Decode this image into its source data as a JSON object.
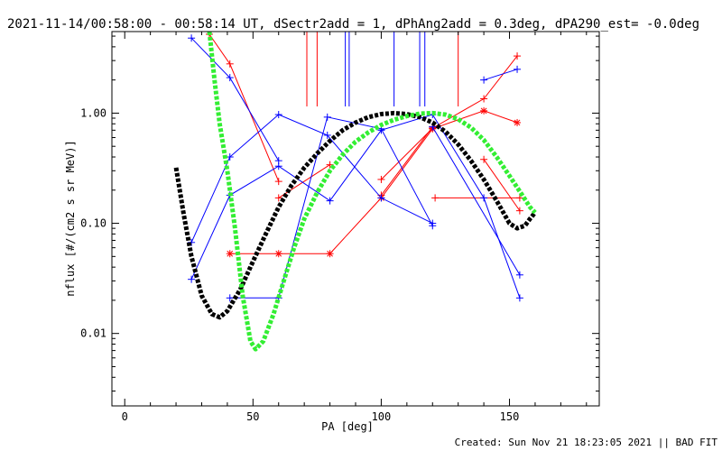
{
  "chart_data": {
    "type": "scatter",
    "title": "2021-11-14/00:58:00 - 00:58:14 UT, dSectr2add = 1, dPhAng2add = 0.3deg, dPA290_est= -0.0deg",
    "xlabel": "PA [deg]",
    "ylabel": "nflux [#/(cm2 s sr MeV)]",
    "xlim": [
      -5,
      185
    ],
    "ylim": [
      0.0022,
      5.5
    ],
    "yscale": "log",
    "xticks": [
      0,
      50,
      100,
      150
    ],
    "xtick_labels": [
      "0",
      "50",
      "100",
      "150"
    ],
    "yticks": [
      0.01,
      0.1,
      1.0
    ],
    "ytick_labels": [
      "0.01",
      "0.10",
      "1.00"
    ],
    "vertical_markers": {
      "red": [
        71,
        75,
        130
      ],
      "blue": [
        86,
        87.5,
        105,
        115,
        117
      ]
    },
    "series": [
      {
        "marker": "plus",
        "color": "#ff0000",
        "segments": [
          [
            [
              33,
              5.2
            ],
            [
              41,
              2.8
            ],
            [
              60,
              0.24
            ]
          ],
          [
            [
              60,
              0.17
            ],
            [
              80,
              0.34
            ]
          ],
          [
            [
              100,
              0.25
            ],
            [
              120,
              0.73
            ],
            [
              140,
              1.35
            ],
            [
              153,
              3.3
            ]
          ],
          [
            [
              121,
              0.17
            ],
            [
              154,
              0.17
            ]
          ],
          [
            [
              154,
              0.13
            ],
            [
              140,
              0.38
            ]
          ],
          [
            [
              100,
              0.18
            ],
            [
              120,
              0.75
            ]
          ]
        ]
      },
      {
        "marker": "star",
        "color": "#ff0000",
        "segments": [
          [
            [
              41,
              0.053
            ],
            [
              60,
              0.053
            ],
            [
              80,
              0.053
            ],
            [
              100,
              0.17
            ],
            [
              120,
              0.72
            ],
            [
              140,
              1.05
            ],
            [
              153,
              0.82
            ]
          ]
        ]
      },
      {
        "marker": "plus",
        "color": "#0000ff",
        "segments": [
          [
            [
              26,
              4.8
            ],
            [
              41,
              2.1
            ],
            [
              60,
              0.37
            ]
          ],
          [
            [
              26,
              0.067
            ],
            [
              41,
              0.4
            ],
            [
              60,
              0.97
            ],
            [
              79,
              0.63
            ],
            [
              100,
              0.17
            ],
            [
              120,
              0.1
            ]
          ],
          [
            [
              26,
              0.031
            ],
            [
              41,
              0.18
            ],
            [
              60,
              0.33
            ],
            [
              80,
              0.16
            ],
            [
              100,
              0.7
            ],
            [
              120,
              0.97
            ],
            [
              140,
              0.17
            ],
            [
              154,
              0.021
            ]
          ],
          [
            [
              41,
              0.021
            ],
            [
              60,
              0.021
            ],
            [
              79,
              0.92
            ],
            [
              100,
              0.72
            ],
            [
              120,
              0.095
            ]
          ],
          [
            [
              140,
              2.0
            ],
            [
              153,
              2.5
            ]
          ],
          [
            [
              120,
              0.75
            ],
            [
              154,
              0.034
            ]
          ]
        ]
      }
    ],
    "fits": [
      {
        "color": "#000000",
        "points": [
          [
            20,
            0.32
          ],
          [
            23,
            0.12
          ],
          [
            26,
            0.05
          ],
          [
            30,
            0.022
          ],
          [
            34,
            0.015
          ],
          [
            37,
            0.014
          ],
          [
            40,
            0.016
          ],
          [
            45,
            0.025
          ],
          [
            50,
            0.045
          ],
          [
            55,
            0.08
          ],
          [
            60,
            0.14
          ],
          [
            65,
            0.22
          ],
          [
            70,
            0.32
          ],
          [
            75,
            0.43
          ],
          [
            80,
            0.56
          ],
          [
            85,
            0.7
          ],
          [
            90,
            0.82
          ],
          [
            95,
            0.92
          ],
          [
            100,
            0.98
          ],
          [
            105,
            1.0
          ],
          [
            110,
            0.98
          ],
          [
            115,
            0.92
          ],
          [
            120,
            0.82
          ],
          [
            125,
            0.68
          ],
          [
            130,
            0.52
          ],
          [
            135,
            0.37
          ],
          [
            140,
            0.25
          ],
          [
            145,
            0.16
          ],
          [
            150,
            0.1
          ],
          [
            153,
            0.09
          ],
          [
            156,
            0.095
          ],
          [
            158,
            0.11
          ],
          [
            160,
            0.125
          ]
        ]
      },
      {
        "color": "#33ee33",
        "points": [
          [
            33,
            5.5
          ],
          [
            35,
            2.0
          ],
          [
            37,
            0.8
          ],
          [
            40,
            0.3
          ],
          [
            43,
            0.09
          ],
          [
            46,
            0.022
          ],
          [
            49,
            0.0085
          ],
          [
            51,
            0.0072
          ],
          [
            54,
            0.0085
          ],
          [
            58,
            0.015
          ],
          [
            62,
            0.03
          ],
          [
            66,
            0.06
          ],
          [
            70,
            0.11
          ],
          [
            75,
            0.19
          ],
          [
            80,
            0.3
          ],
          [
            85,
            0.42
          ],
          [
            90,
            0.55
          ],
          [
            95,
            0.67
          ],
          [
            100,
            0.78
          ],
          [
            105,
            0.87
          ],
          [
            110,
            0.94
          ],
          [
            115,
            0.99
          ],
          [
            120,
            1.0
          ],
          [
            125,
            0.97
          ],
          [
            130,
            0.88
          ],
          [
            135,
            0.74
          ],
          [
            140,
            0.57
          ],
          [
            145,
            0.4
          ],
          [
            150,
            0.27
          ],
          [
            155,
            0.18
          ],
          [
            158,
            0.14
          ],
          [
            160,
            0.125
          ]
        ]
      }
    ]
  },
  "footer": {
    "created": "Created: Sun Nov 21 18:23:05 2021 || BAD FIT"
  }
}
